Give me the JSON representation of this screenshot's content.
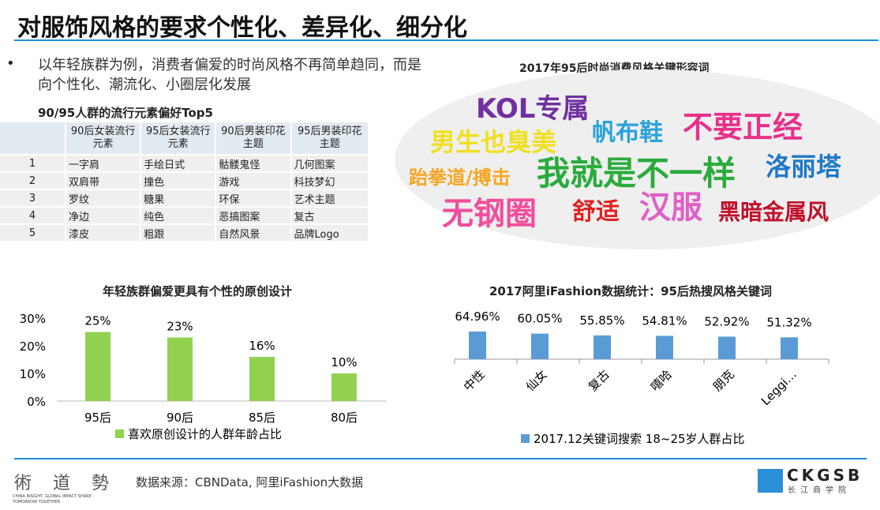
{
  "title": "对服饰风格的要求个性化、差异化、细分化",
  "bullet": "•",
  "bullet_text": "以年轻族群为例，消费者偏爱的时尚风格不再简单趋同，而是向个性化、潮流化、小圈层化发展",
  "table": {
    "title": "90/95人群的流行元素偏好Top5",
    "headers": [
      "",
      "90后女装流行元素",
      "95后女装流行元素",
      "90后男装印花主题",
      "95后男装印花主题"
    ],
    "rows": [
      [
        "1",
        "一字肩",
        "手绘日式",
        "骷髅鬼怪",
        "几何图案"
      ],
      [
        "2",
        "双肩带",
        "撞色",
        "游戏",
        "科技梦幻"
      ],
      [
        "3",
        "罗纹",
        "糖果",
        "环保",
        "艺术主题"
      ],
      [
        "4",
        "净边",
        "纯色",
        "恶搞图案",
        "复古"
      ],
      [
        "5",
        "漆皮",
        "粗跟",
        "自然风景",
        "品牌Logo"
      ]
    ]
  },
  "cloud": {
    "title": "2017年95后时尚消费风格关键形容词",
    "words": [
      {
        "text": "KOL专属",
        "color": "#7030a0"
      },
      {
        "text": "男生也臭美",
        "color": "#f0e020"
      },
      {
        "text": "帆布鞋",
        "color": "#2aa3dc"
      },
      {
        "text": "不要正经",
        "color": "#e8308a"
      },
      {
        "text": "跆拳道/搏击",
        "color": "#f5a623"
      },
      {
        "text": "我就是不一样",
        "color": "#2bab3c"
      },
      {
        "text": "洛丽塔",
        "color": "#1f78c8"
      },
      {
        "text": "无钢圈",
        "color": "#f04e9c"
      },
      {
        "text": "舒适",
        "color": "#e02020"
      },
      {
        "text": "汉服",
        "color": "#e060c8"
      },
      {
        "text": "黑暗金属风",
        "color": "#c0102a"
      }
    ]
  },
  "chart_data": [
    {
      "type": "bar",
      "title": "年轻族群偏爱更具有个性的原创设计",
      "categories": [
        "95后",
        "90后",
        "85后",
        "80后"
      ],
      "values": [
        25,
        23,
        16,
        10
      ],
      "labels": [
        "25%",
        "23%",
        "16%",
        "10%"
      ],
      "yticks": [
        "0%",
        "10%",
        "20%",
        "30%"
      ],
      "ylim": [
        0,
        30
      ],
      "legend": "喜欢原创设计的人群年龄占比",
      "color": "#92d050"
    },
    {
      "type": "bar",
      "title": "2017阿里iFashion数据统计：95后热搜风格关键词",
      "categories": [
        "中性",
        "仙女",
        "复古",
        "嘻哈",
        "朋克",
        "Leggi…"
      ],
      "values": [
        64.96,
        60.05,
        55.85,
        54.81,
        52.92,
        51.32
      ],
      "labels": [
        "64.96%",
        "60.05%",
        "55.85%",
        "54.81%",
        "52.92%",
        "51.32%"
      ],
      "legend": "2017.12关键词搜索 18~25岁人群占比",
      "color": "#5b9bd5"
    }
  ],
  "footer": {
    "source": "数据来源：CBNData, 阿里iFashion大数据",
    "logo_left": "術 道 勢",
    "logo_left_sub": "CHINA INSIGHT, GLOBAL IMPACT SHARE TOMORROW TOGETHER",
    "logo_right": "CKGSB",
    "logo_right_sub": "长江商学院"
  }
}
